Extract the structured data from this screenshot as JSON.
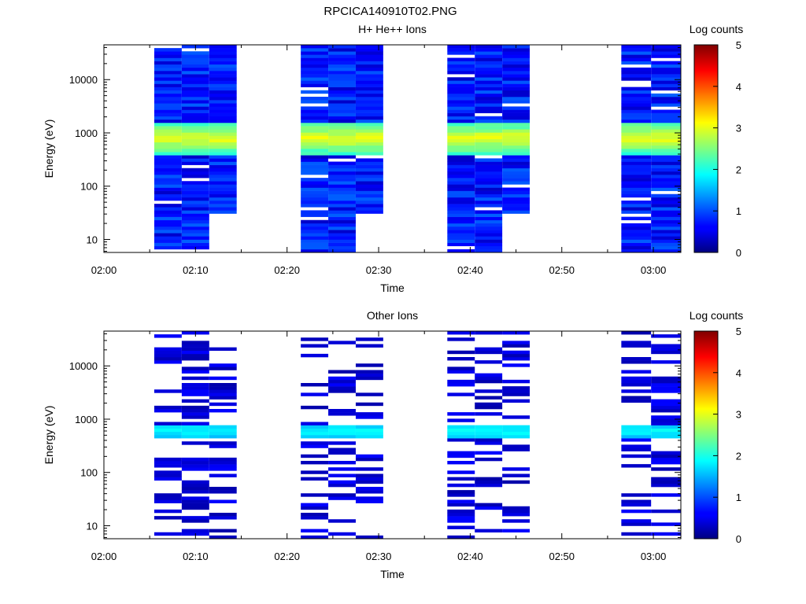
{
  "figure": {
    "title": "RPCICA140910T02.PNG"
  },
  "chart_data": [
    {
      "type": "heatmap",
      "title": "H+ He++ Ions",
      "xlabel": "Time",
      "ylabel": "Energy (eV)",
      "x_ticks": [
        "02:00",
        "02:10",
        "02:20",
        "02:30",
        "02:40",
        "02:50",
        "03:00"
      ],
      "xlim": [
        "02:00",
        "03:03"
      ],
      "y_scale": "log",
      "y_ticks": [
        "10",
        "100",
        "1000",
        "10000"
      ],
      "ylim": [
        5.7,
        45000
      ],
      "colorbar": {
        "label": "Log counts",
        "range": [
          0,
          5
        ],
        "ticks": [
          "0",
          "1",
          "2",
          "3",
          "4",
          "5"
        ]
      },
      "time_blocks": [
        {
          "start": "02:05:30",
          "end": "02:14:30"
        },
        {
          "start": "02:21:30",
          "end": "02:30:30"
        },
        {
          "start": "02:37:30",
          "end": "02:46:30"
        },
        {
          "start": "02:56:30",
          "end": "03:03:00"
        }
      ],
      "dominant_band_eV": [
        400,
        1600
      ],
      "peak_log_counts": 2.9
    },
    {
      "type": "heatmap",
      "title": "Other Ions",
      "xlabel": "Time",
      "ylabel": "Energy (eV)",
      "x_ticks": [
        "02:00",
        "02:10",
        "02:20",
        "02:30",
        "02:40",
        "02:50",
        "03:00"
      ],
      "xlim": [
        "02:00",
        "03:03"
      ],
      "y_scale": "log",
      "y_ticks": [
        "10",
        "100",
        "1000",
        "10000"
      ],
      "ylim": [
        5.7,
        45000
      ],
      "colorbar": {
        "label": "Log counts",
        "range": [
          0,
          5
        ],
        "ticks": [
          "0",
          "1",
          "2",
          "3",
          "4",
          "5"
        ]
      },
      "time_blocks": [
        {
          "start": "02:05:30",
          "end": "02:14:30"
        },
        {
          "start": "02:21:30",
          "end": "02:30:30"
        },
        {
          "start": "02:37:30",
          "end": "02:46:30"
        },
        {
          "start": "02:56:30",
          "end": "03:03:00"
        }
      ],
      "dominant_band_eV": [
        450,
        800
      ],
      "peak_log_counts": 1.8
    }
  ]
}
